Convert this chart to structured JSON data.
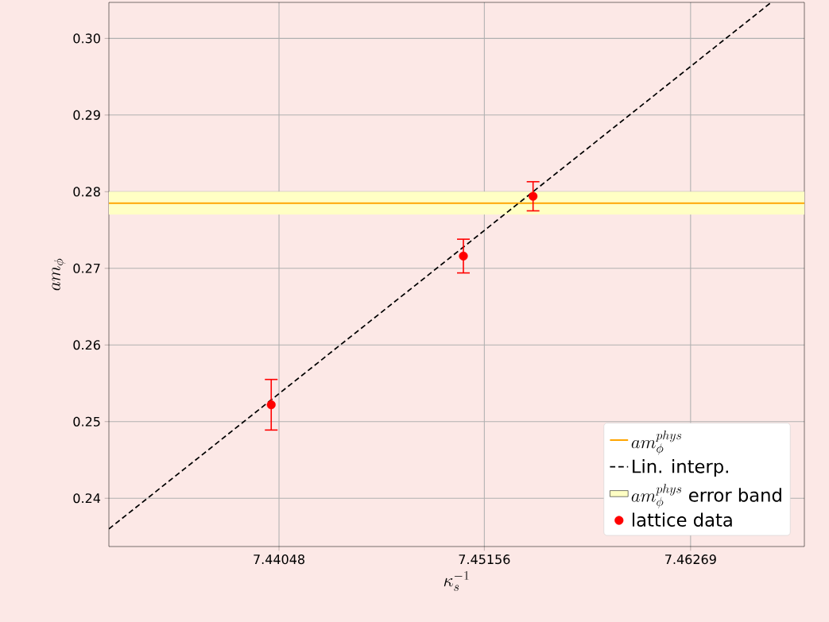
{
  "chart_data": {
    "type": "scatter",
    "xlabel": "\\kappa_s^{-1}",
    "ylabel": "am_{\\phi}",
    "xlim": [
      7.4313,
      7.46883
    ],
    "ylim": [
      0.2337,
      0.3047
    ],
    "xticks": [
      7.44048,
      7.45156,
      7.46269
    ],
    "yticks": [
      {
        "value": 0.24,
        "label": "0.24"
      },
      {
        "value": 0.25,
        "label": "0.25"
      },
      {
        "value": 0.26,
        "label": "0.26"
      },
      {
        "value": 0.27,
        "label": "0.27"
      },
      {
        "value": 0.28,
        "label": "0.28"
      },
      {
        "value": 0.29,
        "label": "0.29"
      },
      {
        "value": 0.3,
        "label": "0.30"
      }
    ],
    "grid": true,
    "legend": "bottom right",
    "series": [
      {
        "name": "Lin. interp.",
        "type": "line",
        "color": "#000000",
        "line_style": "dashed",
        "marker": "none",
        "x": [
          7.4313,
          7.46704
        ],
        "values": [
          0.236,
          0.3047
        ]
      },
      {
        "name": "lattice data",
        "color": "#ff0000",
        "marker": "circle",
        "x": [
          7.44006,
          7.45043,
          7.45419
        ],
        "values": [
          0.2522,
          0.2716,
          0.2794
        ],
        "errors": [
          0.0033,
          0.0022,
          0.0019
        ]
      }
    ],
    "ref_lines": [
      {
        "axis": "y",
        "value": 0.2785,
        "label": "am_{\\phi}^{phys}",
        "color": "#ffa500"
      }
    ],
    "bands": [
      {
        "axis": "y",
        "from": 0.277,
        "to": 0.28,
        "label": "am_{\\phi}^{phys}\\textrm{ error band}",
        "color": "#ffffc4"
      }
    ]
  }
}
